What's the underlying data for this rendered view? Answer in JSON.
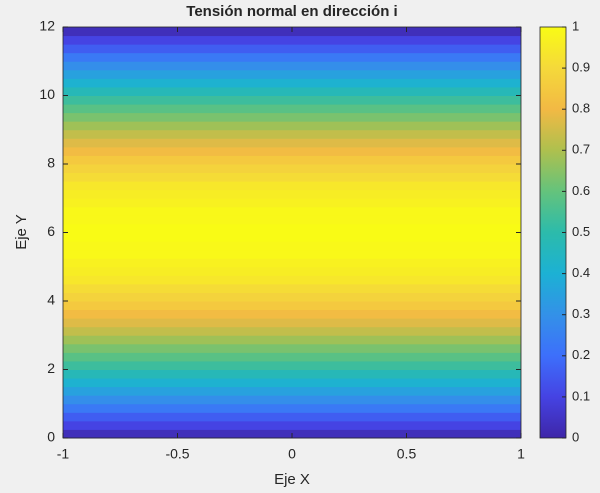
{
  "chart_data": {
    "type": "heatmap",
    "title": "Tensión normal en dirección i",
    "xlabel": "Eje X",
    "ylabel": "Eje Y",
    "xlim": [
      -1,
      1
    ],
    "xticks": [
      -1,
      -0.5,
      0,
      0.5,
      1
    ],
    "ylim": [
      0,
      12
    ],
    "yticks": [
      0,
      2,
      4,
      6,
      8,
      10,
      12
    ],
    "y": [
      0,
      0.25,
      0.5,
      0.75,
      1,
      1.25,
      1.5,
      1.75,
      2,
      2.25,
      2.5,
      2.75,
      3,
      3.25,
      3.5,
      3.75,
      4,
      4.25,
      4.5,
      4.75,
      5,
      5.25,
      5.5,
      5.75,
      6,
      6.25,
      6.5,
      6.75,
      7,
      7.25,
      7.5,
      7.75,
      8,
      8.25,
      8.5,
      8.75,
      9,
      9.25,
      9.5,
      9.75,
      10,
      10.25,
      10.5,
      10.75,
      11,
      11.25,
      11.5,
      11.75,
      12
    ],
    "values": [
      0.03,
      0.1,
      0.16,
      0.23,
      0.29,
      0.35,
      0.41,
      0.47,
      0.53,
      0.58,
      0.63,
      0.68,
      0.73,
      0.77,
      0.81,
      0.85,
      0.88,
      0.91,
      0.94,
      0.96,
      0.97,
      0.99,
      0.99,
      1,
      1,
      0.99,
      0.99,
      0.97,
      0.96,
      0.94,
      0.91,
      0.88,
      0.85,
      0.81,
      0.77,
      0.73,
      0.68,
      0.63,
      0.58,
      0.53,
      0.47,
      0.41,
      0.35,
      0.29,
      0.23,
      0.16,
      0.1,
      0.03
    ],
    "clim": [
      0,
      1
    ],
    "cticks": [
      0,
      0.1,
      0.2,
      0.3,
      0.4,
      0.5,
      0.6,
      0.7,
      0.8,
      0.9,
      1
    ],
    "colormap": [
      "#3e26a8",
      "#4543e3",
      "#3d6ffb",
      "#3391e8",
      "#1cb1d4",
      "#2cbbab",
      "#64c37c",
      "#aec04e",
      "#f2b944",
      "#f5d93a",
      "#f9fb15"
    ]
  }
}
